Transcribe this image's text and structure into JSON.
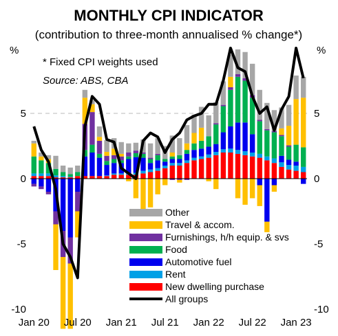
{
  "chart_data": {
    "type": "bar",
    "title": "MONTHLY CPI INDICATOR",
    "subtitle": "(contribution to three-month annualised % change*)",
    "y_unit": "%",
    "note": "*  Fixed CPI weights used",
    "source": "Source: ABS, CBA",
    "ylim": [
      -10,
      10
    ],
    "yticks": [
      -10,
      -5,
      0,
      5
    ],
    "gridlines": [
      5
    ],
    "x_tick_labels": [
      "Jan 20",
      "Jul 20",
      "Jan 21",
      "Jul 21",
      "Jan 22",
      "Jul 22",
      "Jan 23"
    ],
    "x_tick_index": [
      0,
      6,
      12,
      18,
      24,
      30,
      36
    ],
    "categories": [
      "Jan-20",
      "Feb-20",
      "Mar-20",
      "Apr-20",
      "May-20",
      "Jun-20",
      "Jul-20",
      "Aug-20",
      "Sep-20",
      "Oct-20",
      "Nov-20",
      "Dec-20",
      "Jan-21",
      "Feb-21",
      "Mar-21",
      "Apr-21",
      "May-21",
      "Jun-21",
      "Jul-21",
      "Aug-21",
      "Sep-21",
      "Oct-21",
      "Nov-21",
      "Dec-21",
      "Jan-22",
      "Feb-22",
      "Mar-22",
      "Apr-22",
      "May-22",
      "Jun-22",
      "Jul-22",
      "Aug-22",
      "Sep-22",
      "Oct-22",
      "Nov-22",
      "Dec-22",
      "Jan-23",
      "Feb-23"
    ],
    "series": [
      {
        "name": "New dwelling purchase",
        "color": "#ff0000",
        "values": [
          0.2,
          0.2,
          0.2,
          0.1,
          0.1,
          0.1,
          0.2,
          0.2,
          0.2,
          0.2,
          0.2,
          0.3,
          0.3,
          0.3,
          0.3,
          0.4,
          0.5,
          0.6,
          0.8,
          1.0,
          1.0,
          1.2,
          1.4,
          1.5,
          1.6,
          1.8,
          2.0,
          2.0,
          1.9,
          1.8,
          1.7,
          1.6,
          1.4,
          1.2,
          0.9,
          0.7,
          0.6,
          0.5
        ]
      },
      {
        "name": "Rent",
        "color": "#00a0e6",
        "values": [
          0.2,
          0.2,
          0.2,
          0.15,
          0.1,
          0.05,
          0.0,
          0.0,
          0.0,
          0.0,
          0.05,
          0.1,
          0.1,
          0.1,
          0.15,
          0.2,
          0.2,
          0.2,
          0.2,
          0.2,
          0.2,
          0.2,
          0.2,
          0.2,
          0.25,
          0.25,
          0.25,
          0.3,
          0.3,
          0.3,
          0.3,
          0.3,
          0.3,
          0.35,
          0.35,
          0.35,
          0.4,
          0.4
        ]
      },
      {
        "name": "Automotive fuel",
        "color": "#0000ee",
        "values": [
          -0.4,
          -0.6,
          -1.0,
          -2.5,
          -4.0,
          -4.5,
          -1.0,
          1.5,
          1.8,
          1.4,
          0.8,
          0.8,
          0.8,
          1.1,
          1.2,
          1.0,
          0.5,
          0.6,
          0.3,
          0.3,
          0.3,
          0.5,
          0.6,
          0.6,
          0.6,
          0.6,
          1.3,
          1.7,
          2.1,
          2.2,
          1.4,
          -0.5,
          -3.3,
          -0.5,
          0.5,
          0.4,
          0.3,
          -0.4
        ]
      },
      {
        "name": "Food",
        "color": "#00b050",
        "values": [
          1.3,
          1.0,
          0.8,
          0.5,
          0.3,
          0.2,
          0.3,
          0.5,
          0.6,
          0.3,
          0.3,
          0.3,
          0.2,
          0.2,
          0.3,
          0.3,
          0.3,
          0.4,
          0.2,
          0.2,
          0.3,
          0.3,
          0.5,
          0.6,
          0.8,
          1.5,
          2.0,
          2.8,
          3.5,
          3.2,
          2.8,
          2.5,
          2.0,
          2.0,
          1.5,
          1.0,
          1.3,
          1.5
        ]
      },
      {
        "name": "Furnishings, h/h equip. & svs",
        "color": "#7030a0",
        "values": [
          -0.2,
          -0.2,
          -0.2,
          -1.0,
          -2.0,
          -2.0,
          -1.5,
          2.0,
          2.5,
          1.0,
          0.4,
          0.3,
          0.3,
          0.3,
          0.2,
          0.1,
          0.1,
          0.1,
          0.0,
          -0.1,
          -0.1,
          -0.1,
          0.0,
          0.0,
          0.0,
          0.1,
          0.1,
          0.2,
          0.2,
          0.2,
          0.2,
          0.1,
          0.1,
          0.1,
          0.1,
          0.1,
          0.0,
          0.0
        ]
      },
      {
        "name": "Travel & accom.",
        "color": "#ffc000",
        "values": [
          1.0,
          0.3,
          0.3,
          -3.5,
          -5.5,
          -5.0,
          -2.0,
          2.0,
          0.6,
          0.3,
          0.3,
          0.5,
          0.2,
          -0.2,
          -1.5,
          -2.5,
          -2.2,
          -1.2,
          -0.5,
          0.3,
          -0.2,
          0.5,
          0.8,
          1.0,
          -0.2,
          -0.8,
          0.0,
          0.8,
          -1.5,
          -2.0,
          -1.5,
          -1.6,
          -0.8,
          -0.5,
          0.5,
          1.5,
          3.5,
          3.8
        ]
      },
      {
        "name": "Other",
        "color": "#a6a6a6",
        "values": [
          0.2,
          0.3,
          0.3,
          1.0,
          0.5,
          0.5,
          0.5,
          0.6,
          0.3,
          0.8,
          0.9,
          0.8,
          0.9,
          0.7,
          0.6,
          1.0,
          1.1,
          1.2,
          1.0,
          1.3,
          1.3,
          1.4,
          1.4,
          1.6,
          1.6,
          1.6,
          1.8,
          1.7,
          1.9,
          2.0,
          2.4,
          2.3,
          2.0,
          1.6,
          1.6,
          1.6,
          1.8,
          1.6
        ]
      }
    ],
    "line": {
      "name": "All groups",
      "color": "#000000",
      "values": [
        4.0,
        2.2,
        1.3,
        -0.8,
        -5.0,
        -6.0,
        -7.6,
        4.0,
        6.3,
        5.7,
        3.0,
        2.8,
        0.8,
        0.4,
        0.0,
        2.9,
        3.5,
        3.2,
        2.0,
        3.0,
        3.5,
        4.5,
        4.8,
        5.0,
        5.7,
        5.7,
        7.5,
        10.0,
        8.5,
        8.2,
        6.3,
        5.0,
        5.5,
        3.7,
        5.3,
        6.3,
        10.0,
        7.7
      ]
    },
    "legend_placement": "bottom-right",
    "legend_order": [
      "Other",
      "Travel & accom.",
      "Furnishings, h/h equip. & svs",
      "Food",
      "Automotive fuel",
      "Rent",
      "New dwelling purchase",
      "All groups"
    ]
  }
}
